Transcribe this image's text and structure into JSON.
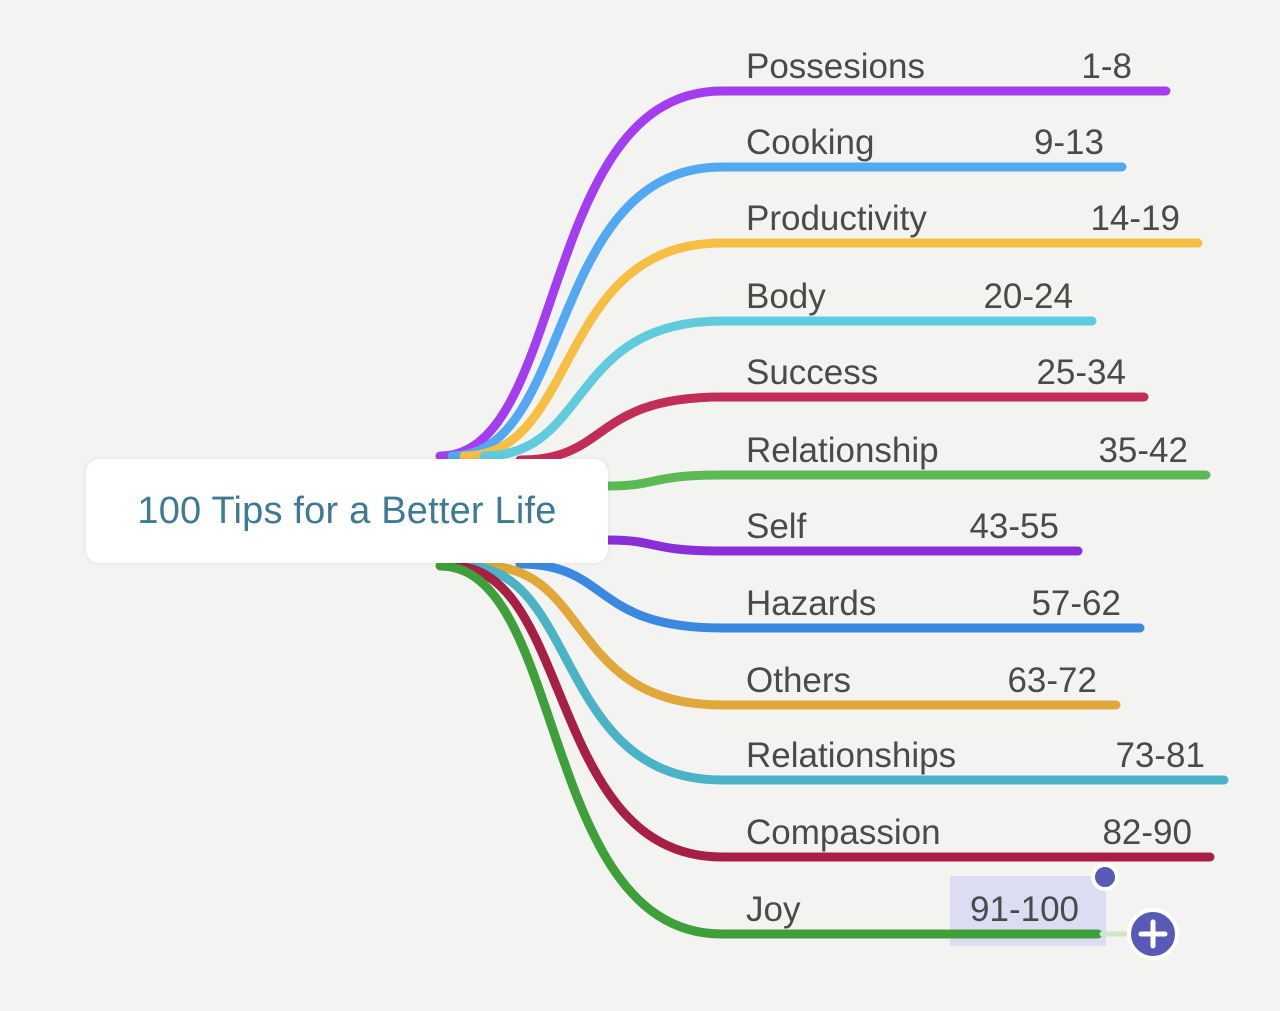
{
  "root": {
    "title": "100 Tips for a Better Life"
  },
  "branches": [
    {
      "topic": "Possesions",
      "range": "1-8",
      "color": "#a43df0"
    },
    {
      "topic": "Cooking",
      "range": "9-13",
      "color": "#52a8f2"
    },
    {
      "topic": "Productivity",
      "range": "14-19",
      "color": "#f6bf43"
    },
    {
      "topic": "Body",
      "range": "20-24",
      "color": "#5fcbdc"
    },
    {
      "topic": "Success",
      "range": "25-34",
      "color": "#c22d58"
    },
    {
      "topic": "Relationship",
      "range": "35-42",
      "color": "#5cba55"
    },
    {
      "topic": "Self",
      "range": "43-55",
      "color": "#8a2fd8"
    },
    {
      "topic": "Hazards",
      "range": "57-62",
      "color": "#3a89e0"
    },
    {
      "topic": "Others",
      "range": "63-72",
      "color": "#e0a73a"
    },
    {
      "topic": "Relationships",
      "range": "73-81",
      "color": "#4ab3c6"
    },
    {
      "topic": "Compassion",
      "range": "82-90",
      "color": "#a81f45"
    },
    {
      "topic": "Joy",
      "range": "91-100",
      "color": "#3f9f3a"
    }
  ],
  "selection": {
    "selected_branch": "Joy",
    "highlight_color": "#dcdcf3",
    "handle_color": "#5959b8",
    "add_icon": "plus-circle-icon"
  }
}
